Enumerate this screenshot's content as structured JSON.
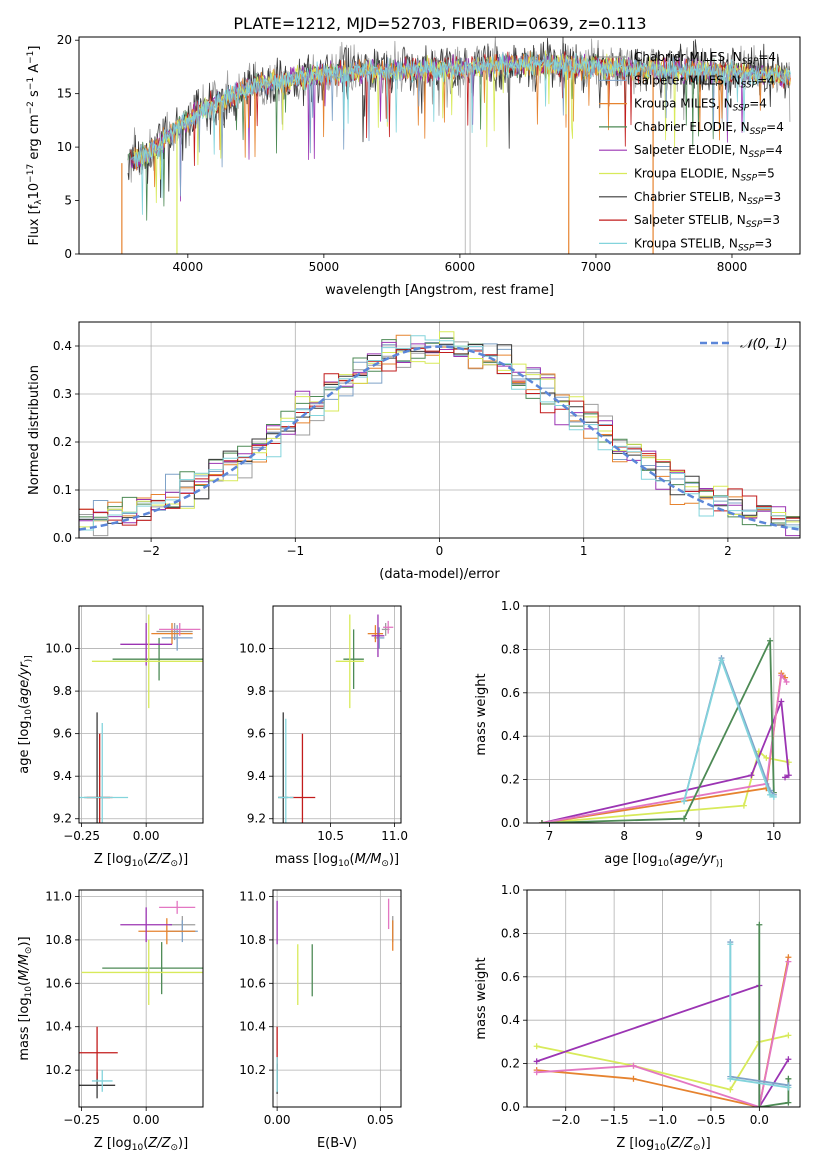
{
  "figure_title": "PLATE=1212, MJD=52703, FIBERID=0639, z=0.113",
  "legend_models": [
    {
      "name": "Chabrier MILES, N",
      "sub": "SSP",
      "suffix": "=4",
      "color": "#9e9e9e"
    },
    {
      "name": "Salpeter MILES, N",
      "sub": "SSP",
      "suffix": "=4",
      "color": "#7fa2c8"
    },
    {
      "name": "Kroupa MILES, N",
      "sub": "SSP",
      "suffix": "=4",
      "color": "#e6832f"
    },
    {
      "name": "Chabrier ELODIE, N",
      "sub": "SSP",
      "suffix": "=4",
      "color": "#4d8a55"
    },
    {
      "name": "Salpeter ELODIE, N",
      "sub": "SSP",
      "suffix": "=4",
      "color": "#9b34b3"
    },
    {
      "name": "Kroupa ELODIE, N",
      "sub": "SSP",
      "suffix": "=5",
      "color": "#d8ea5a"
    },
    {
      "name": "Chabrier STELIB, N",
      "sub": "SSP",
      "suffix": "=3",
      "color": "#3a3a3a"
    },
    {
      "name": "Salpeter STELIB, N",
      "sub": "SSP",
      "suffix": "=3",
      "color": "#c21c1c"
    },
    {
      "name": "Kroupa STELIB, N",
      "sub": "SSP",
      "suffix": "=3",
      "color": "#83d4dc"
    }
  ],
  "chart_data": [
    {
      "id": "spectrum",
      "type": "line",
      "xlabel": "wavelength [Angstrom, rest frame]",
      "ylabel_parts": [
        "Flux [f",
        "λ",
        "10",
        "−17",
        " erg cm",
        "−2",
        " s",
        "−1",
        " A",
        "−1",
        "]"
      ],
      "xlim": [
        3200,
        8500
      ],
      "ylim": [
        0,
        20.3
      ],
      "xticks": [
        4000,
        5000,
        6000,
        7000,
        8000
      ],
      "yticks": [
        0,
        5,
        10,
        15,
        20
      ],
      "data_range": [
        3560,
        8430
      ],
      "continuum_x": [
        3560,
        3700,
        3900,
        4100,
        4500,
        5000,
        5500,
        6000,
        6500,
        7000,
        7500,
        8000,
        8430
      ],
      "continuum_y": [
        8.5,
        9.3,
        11.5,
        13.5,
        15.8,
        16.8,
        17.2,
        17.4,
        17.8,
        17.5,
        17.2,
        17.0,
        16.6
      ],
      "drop_lines": [
        {
          "x": 3515,
          "color": "#e6832f"
        },
        {
          "x": 3920,
          "color": "#d8ea5a"
        },
        {
          "x": 6040,
          "color": "#c8c8c8"
        },
        {
          "x": 6075,
          "color": "#c8c8c8"
        },
        {
          "x": 6800,
          "color": "#e6832f"
        },
        {
          "x": 7420,
          "color": "#e6832f"
        }
      ]
    },
    {
      "id": "residuals",
      "type": "step",
      "xlabel": "(data-model)/error",
      "ylabel": "Normed distribution",
      "xlim": [
        -2.5,
        2.5
      ],
      "ylim": [
        0,
        0.45
      ],
      "xticks": [
        -2,
        -1,
        0,
        1,
        2
      ],
      "xtick_labels": [
        "−2",
        "−1",
        "0",
        "1",
        "2"
      ],
      "yticks": [
        0.0,
        0.1,
        0.2,
        0.3,
        0.4
      ],
      "ytick_labels": [
        "0.0",
        "0.1",
        "0.2",
        "0.3",
        "0.4"
      ],
      "bin_width": 0.1,
      "reference_curve": {
        "name": "𝒩(0, 1)",
        "mean": 0,
        "sigma": 1,
        "color": "#5b86d8"
      }
    },
    {
      "id": "Z-age",
      "type": "errorbar",
      "xlabel_parts": [
        "Z [log",
        "10",
        "(",
        "Z/Z",
        "⊙",
        ")]"
      ],
      "ylabel_parts": [
        "age  [log",
        "10",
        "(",
        "age/yr",
        ")]"
      ],
      "xlim": [
        -0.26,
        0.22
      ],
      "ylim": [
        9.18,
        10.2
      ],
      "xticks": [
        -0.25,
        0.0
      ],
      "xtick_labels": [
        "−0.25",
        "0.00"
      ],
      "yticks": [
        9.2,
        9.4,
        9.6,
        9.8,
        10.0
      ],
      "ytick_labels": [
        "9.2",
        "9.4",
        "9.6",
        "9.8",
        "10.0"
      ],
      "points": [
        {
          "x": 0.11,
          "xerr": 0.07,
          "y": 10.08,
          "yerr": 0.04,
          "color": "#9e9e9e"
        },
        {
          "x": 0.12,
          "xerr": 0.06,
          "y": 10.05,
          "yerr": 0.06,
          "color": "#7fa2c8"
        },
        {
          "x": 0.1,
          "xerr": 0.08,
          "y": 10.07,
          "yerr": 0.05,
          "color": "#e6832f"
        },
        {
          "x": 0.05,
          "xerr": 0.18,
          "y": 9.95,
          "yerr": 0.1,
          "color": "#4d8a55"
        },
        {
          "x": 0.0,
          "xerr": 0.1,
          "y": 10.02,
          "yerr": 0.1,
          "color": "#9b34b3"
        },
        {
          "x": 0.01,
          "xerr": 0.22,
          "y": 9.94,
          "yerr": 0.22,
          "color": "#d8ea5a"
        },
        {
          "x": -0.19,
          "xerr": 0.05,
          "y": 9.3,
          "yerr": 0.4,
          "color": "#3a3a3a"
        },
        {
          "x": -0.18,
          "xerr": 0.05,
          "y": 9.3,
          "yerr": 0.3,
          "color": "#c21c1c"
        },
        {
          "x": -0.17,
          "xerr": 0.1,
          "y": 9.3,
          "yerr": 0.35,
          "color": "#83d4dc"
        },
        {
          "x": 0.13,
          "xerr": 0.08,
          "y": 10.09,
          "yerr": 0.03,
          "color": "#e377c2"
        }
      ]
    },
    {
      "id": "mass-age",
      "type": "errorbar",
      "xlabel_parts": [
        "mass [log",
        "10",
        "(",
        "M/M",
        "⊙",
        ")]"
      ],
      "xlim": [
        10.05,
        11.05
      ],
      "ylim": [
        9.18,
        10.2
      ],
      "xticks": [
        10.5,
        11.0
      ],
      "xtick_labels": [
        "10.5",
        "11.0"
      ],
      "yticks": [
        9.2,
        9.4,
        9.6,
        9.8,
        10.0
      ],
      "ytick_labels": [
        "9.2",
        "9.4",
        "9.6",
        "9.8",
        "10.0"
      ],
      "points": [
        {
          "x": 10.93,
          "xerr": 0.03,
          "y": 10.09,
          "yerr": 0.03,
          "color": "#9e9e9e"
        },
        {
          "x": 10.88,
          "xerr": 0.04,
          "y": 10.05,
          "yerr": 0.05,
          "color": "#7fa2c8"
        },
        {
          "x": 10.85,
          "xerr": 0.06,
          "y": 10.07,
          "yerr": 0.04,
          "color": "#e6832f"
        },
        {
          "x": 10.68,
          "xerr": 0.08,
          "y": 9.95,
          "yerr": 0.14,
          "color": "#4d8a55"
        },
        {
          "x": 10.87,
          "xerr": 0.05,
          "y": 10.06,
          "yerr": 0.1,
          "color": "#9b34b3"
        },
        {
          "x": 10.65,
          "xerr": 0.11,
          "y": 9.94,
          "yerr": 0.22,
          "color": "#d8ea5a"
        },
        {
          "x": 10.13,
          "xerr": 0.04,
          "y": 9.3,
          "yerr": 0.4,
          "color": "#3a3a3a"
        },
        {
          "x": 10.28,
          "xerr": 0.1,
          "y": 9.3,
          "yerr": 0.3,
          "color": "#c21c1c"
        },
        {
          "x": 10.15,
          "xerr": 0.06,
          "y": 9.3,
          "yerr": 0.37,
          "color": "#83d4dc"
        },
        {
          "x": 10.95,
          "xerr": 0.04,
          "y": 10.1,
          "yerr": 0.03,
          "color": "#e377c2"
        }
      ]
    },
    {
      "id": "age-weight",
      "type": "line",
      "xlabel_parts": [
        "age  [log",
        "10",
        "(",
        "age/yr",
        ")]"
      ],
      "ylabel": "mass weight",
      "xlim": [
        6.7,
        10.35
      ],
      "ylim": [
        0,
        1.0
      ],
      "xticks": [
        7,
        8,
        9,
        10
      ],
      "xtick_labels": [
        "7",
        "8",
        "9",
        "10"
      ],
      "yticks": [
        0.0,
        0.2,
        0.4,
        0.6,
        0.8,
        1.0
      ],
      "ytick_labels": [
        "0.0",
        "0.2",
        "0.4",
        "0.6",
        "0.8",
        "1.0"
      ],
      "series": [
        {
          "color": "#d8ea5a",
          "x": [
            6.9,
            9.6,
            9.8,
            9.9,
            10.2
          ],
          "y": [
            0.0,
            0.08,
            0.33,
            0.3,
            0.28
          ]
        },
        {
          "color": "#9b34b3",
          "x": [
            6.9,
            9.7,
            10.1,
            10.2,
            10.15
          ],
          "y": [
            0.0,
            0.22,
            0.56,
            0.22,
            0.21
          ]
        },
        {
          "color": "#e6832f",
          "x": [
            6.9,
            9.9,
            10.1,
            10.15
          ],
          "y": [
            0.0,
            0.16,
            0.69,
            0.67
          ]
        },
        {
          "color": "#e377c2",
          "x": [
            6.9,
            9.9,
            10.1,
            10.17
          ],
          "y": [
            0.0,
            0.18,
            0.68,
            0.65
          ]
        },
        {
          "color": "#4d8a55",
          "x": [
            6.9,
            8.8,
            9.95,
            10.0
          ],
          "y": [
            0.0,
            0.02,
            0.84,
            0.14
          ]
        },
        {
          "color": "#7fa2c8",
          "x": [
            8.8,
            9.3,
            9.95,
            10.0
          ],
          "y": [
            0.1,
            0.76,
            0.15,
            0.13
          ]
        },
        {
          "color": "#83d4dc",
          "x": [
            8.8,
            9.3,
            9.95,
            10.0
          ],
          "y": [
            0.1,
            0.75,
            0.13,
            0.12
          ]
        }
      ]
    },
    {
      "id": "Z-mass",
      "type": "errorbar",
      "xlabel_parts": [
        "Z [log",
        "10",
        "(",
        "Z/Z",
        "⊙",
        ")]"
      ],
      "ylabel_parts": [
        "mass [log",
        "10",
        "(",
        "M/M",
        "⊙",
        ")]"
      ],
      "xlim": [
        -0.26,
        0.22
      ],
      "ylim": [
        10.03,
        11.03
      ],
      "xticks": [
        -0.25,
        0.0
      ],
      "xtick_labels": [
        "−0.25",
        "0.00"
      ],
      "yticks": [
        10.2,
        10.4,
        10.6,
        10.8,
        11.0
      ],
      "ytick_labels": [
        "10.2",
        "10.4",
        "10.6",
        "10.8",
        "11.0"
      ],
      "points": [
        {
          "x": 0.14,
          "xerr": 0.05,
          "y": 10.87,
          "yerr": 0.04,
          "color": "#9e9e9e"
        },
        {
          "x": 0.14,
          "xerr": 0.06,
          "y": 10.84,
          "yerr": 0.05,
          "color": "#7fa2c8"
        },
        {
          "x": 0.08,
          "xerr": 0.11,
          "y": 10.84,
          "yerr": 0.06,
          "color": "#e6832f"
        },
        {
          "x": 0.06,
          "xerr": 0.23,
          "y": 10.67,
          "yerr": 0.12,
          "color": "#4d8a55"
        },
        {
          "x": 0.0,
          "xerr": 0.1,
          "y": 10.87,
          "yerr": 0.08,
          "color": "#9b34b3"
        },
        {
          "x": 0.01,
          "xerr": 0.26,
          "y": 10.65,
          "yerr": 0.15,
          "color": "#d8ea5a"
        },
        {
          "x": -0.19,
          "xerr": 0.07,
          "y": 10.13,
          "yerr": 0.06,
          "color": "#3a3a3a"
        },
        {
          "x": -0.19,
          "xerr": 0.08,
          "y": 10.28,
          "yerr": 0.12,
          "color": "#c21c1c"
        },
        {
          "x": -0.17,
          "xerr": 0.04,
          "y": 10.15,
          "yerr": 0.05,
          "color": "#83d4dc"
        },
        {
          "x": 0.12,
          "xerr": 0.07,
          "y": 10.95,
          "yerr": 0.03,
          "color": "#e377c2"
        }
      ]
    },
    {
      "id": "ebv-mass",
      "type": "errorbar",
      "xlabel": "E(B-V)",
      "xlim": [
        -0.002,
        0.06
      ],
      "ylim": [
        10.03,
        11.03
      ],
      "xticks": [
        0.0,
        0.05
      ],
      "xtick_labels": [
        "0.00",
        "0.05"
      ],
      "yticks": [
        10.2,
        10.4,
        10.6,
        10.8,
        11.0
      ],
      "ytick_labels": [
        "10.2",
        "10.4",
        "10.6",
        "10.8",
        "11.0"
      ],
      "points": [
        {
          "x": 0.056,
          "xerr": 0,
          "y": 10.86,
          "yerr": 0.05,
          "color": "#9e9e9e"
        },
        {
          "x": 0.056,
          "xerr": 0,
          "y": 10.84,
          "yerr": 0.05,
          "color": "#7fa2c8"
        },
        {
          "x": 0.056,
          "xerr": 0,
          "y": 10.82,
          "yerr": 0.07,
          "color": "#e6832f"
        },
        {
          "x": 0.017,
          "xerr": 0,
          "y": 10.66,
          "yerr": 0.12,
          "color": "#4d8a55"
        },
        {
          "x": 0.0,
          "xerr": 0,
          "y": 10.88,
          "yerr": 0.1,
          "color": "#9b34b3"
        },
        {
          "x": 0.01,
          "xerr": 0,
          "y": 10.64,
          "yerr": 0.14,
          "color": "#d8ea5a"
        },
        {
          "x": 0.0,
          "xerr": 0,
          "y": 10.16,
          "yerr": 0.07,
          "color": "#3a3a3a"
        },
        {
          "x": 0.0,
          "xerr": 0,
          "y": 10.3,
          "yerr": 0.1,
          "color": "#c21c1c"
        },
        {
          "x": 0.0,
          "xerr": 0,
          "y": 10.18,
          "yerr": 0.08,
          "color": "#83d4dc"
        },
        {
          "x": 0.054,
          "xerr": 0,
          "y": 10.92,
          "yerr": 0.07,
          "color": "#e377c2"
        }
      ]
    },
    {
      "id": "Z-weight",
      "type": "line",
      "xlabel_parts": [
        "Z [log",
        "10",
        "(",
        "Z/Z",
        "⊙",
        ")]"
      ],
      "ylabel": "mass weight",
      "xlim": [
        -2.4,
        0.42
      ],
      "ylim": [
        0,
        1.0
      ],
      "xticks": [
        -2.0,
        -1.5,
        -1.0,
        -0.5,
        0.0
      ],
      "xtick_labels": [
        "−2.0",
        "−1.5",
        "−1.0",
        "−0.5",
        "0.0"
      ],
      "yticks": [
        0.0,
        0.2,
        0.4,
        0.6,
        0.8,
        1.0
      ],
      "ytick_labels": [
        "0.0",
        "0.2",
        "0.4",
        "0.6",
        "0.8",
        "1.0"
      ],
      "series": [
        {
          "color": "#d8ea5a",
          "x": [
            -2.3,
            -1.3,
            -0.3,
            0.0,
            0.3
          ],
          "y": [
            0.28,
            0.19,
            0.08,
            0.3,
            0.33
          ]
        },
        {
          "color": "#9b34b3",
          "x": [
            -2.3,
            0.0,
            0.0,
            0.3
          ],
          "y": [
            0.21,
            0.56,
            0.0,
            0.22
          ]
        },
        {
          "color": "#e6832f",
          "x": [
            -2.3,
            -1.3,
            0.0,
            0.3
          ],
          "y": [
            0.17,
            0.13,
            0.0,
            0.69
          ]
        },
        {
          "color": "#e377c2",
          "x": [
            -2.3,
            -1.3,
            0.0,
            0.3
          ],
          "y": [
            0.16,
            0.19,
            0.0,
            0.67
          ]
        },
        {
          "color": "#4d8a55",
          "x": [
            0.0,
            0.0,
            0.3,
            0.3
          ],
          "y": [
            0.84,
            0.0,
            0.02,
            0.13
          ]
        },
        {
          "color": "#7fa2c8",
          "x": [
            -0.3,
            -0.3,
            0.3
          ],
          "y": [
            0.76,
            0.14,
            0.1
          ]
        },
        {
          "color": "#83d4dc",
          "x": [
            -0.3,
            -0.3,
            0.3
          ],
          "y": [
            0.75,
            0.13,
            0.09
          ]
        }
      ]
    }
  ]
}
